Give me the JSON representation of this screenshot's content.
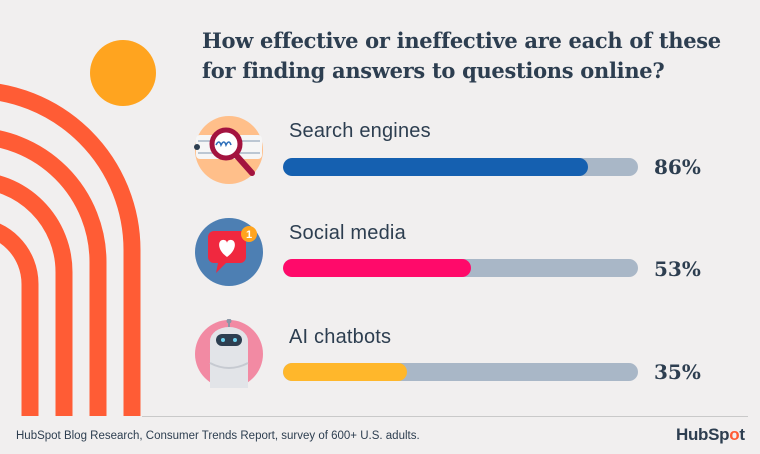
{
  "title_lines": [
    "How effective or ineffective are each of these",
    "for finding answers to questions online?"
  ],
  "chart_data": {
    "type": "bar",
    "orientation": "horizontal",
    "title": "How effective or ineffective are each of these for finding answers to questions online?",
    "categories": [
      "Search engines",
      "Social media",
      "AI chatbots"
    ],
    "values": [
      86,
      53,
      35
    ],
    "value_labels": [
      "86%",
      "53%",
      "35%"
    ],
    "xlim": [
      0,
      100
    ],
    "grid": false,
    "bar_colors": [
      "#1560b0",
      "#ff0a6a",
      "#ffb72b"
    ],
    "track_color": "#a9b7c7",
    "icons": [
      "magnifying-glass-icon",
      "heart-notification-icon",
      "robot-icon"
    ]
  },
  "notification_count": "1",
  "footer": {
    "source": "HubSpot Blog Research, Consumer Trends Report, survey of 600+ U.S. adults.",
    "brand_left": "HubSp",
    "brand_dot": "o",
    "brand_right": "t"
  },
  "colors": {
    "background": "#f1efef",
    "text": "#2d3e50",
    "accent_orange": "#ff5c35",
    "sun": "#ffa41f"
  }
}
